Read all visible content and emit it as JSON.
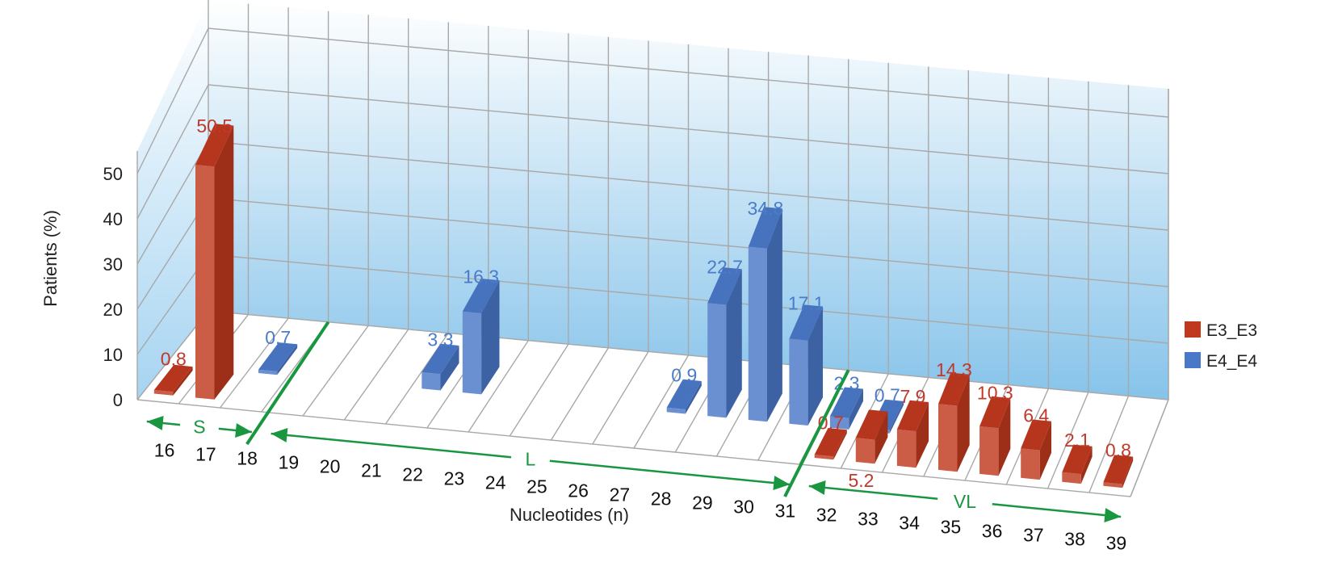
{
  "chart_data": {
    "type": "bar",
    "subtype": "3d-column",
    "categories": [
      "16",
      "17",
      "18",
      "19",
      "20",
      "21",
      "22",
      "23",
      "24",
      "25",
      "26",
      "27",
      "28",
      "29",
      "30",
      "31",
      "32",
      "33",
      "34",
      "35",
      "36",
      "37",
      "38",
      "39"
    ],
    "series": [
      {
        "name": "E3_E3",
        "color": "#c0391f",
        "values": [
          0.8,
          50.5,
          null,
          null,
          null,
          null,
          null,
          null,
          null,
          null,
          null,
          null,
          null,
          null,
          null,
          null,
          0.7,
          5.2,
          7.9,
          14.3,
          10.3,
          6.4,
          2.1,
          0.8
        ]
      },
      {
        "name": "E4_E4",
        "color": "#4a78c8",
        "values": [
          null,
          null,
          0.7,
          null,
          null,
          null,
          3.3,
          16.3,
          null,
          null,
          null,
          null,
          0.9,
          22.7,
          34.8,
          17.1,
          2.3,
          0.7,
          null,
          null,
          null,
          null,
          null,
          null
        ]
      }
    ],
    "xlabel": "Nucleotides (n)",
    "ylabel": "Patients (%)",
    "yticks": [
      "0",
      "10",
      "20",
      "30",
      "40",
      "50"
    ],
    "ylim": [
      0,
      55
    ],
    "grid": true,
    "legend": "right",
    "regions": [
      {
        "label": "S",
        "from": "16",
        "to": "18"
      },
      {
        "label": "L",
        "from": "19",
        "to": "31"
      },
      {
        "label": "VL",
        "from": "32",
        "to": "39"
      }
    ]
  }
}
